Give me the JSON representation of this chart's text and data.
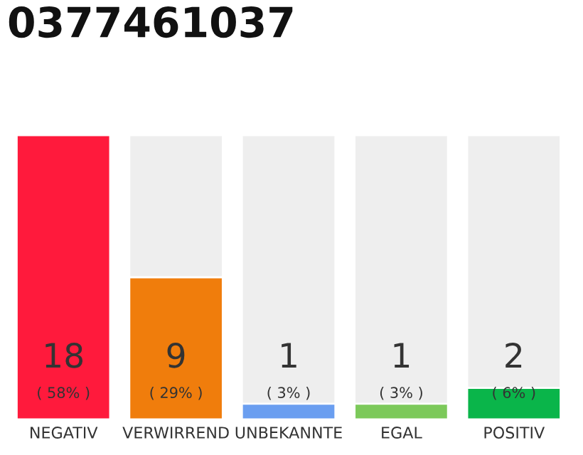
{
  "chart_data": {
    "type": "bar",
    "title": "0377461037",
    "categories": [
      "NEGATIV",
      "VERWIRREND",
      "UNBEKANNTE",
      "EGAL",
      "POSITIV"
    ],
    "values": [
      18,
      9,
      1,
      1,
      2
    ],
    "colors": [
      "#ff1a3c",
      "#f07d0c",
      "#6a9ef0",
      "#7cc95a",
      "#0ab54a"
    ],
    "value_labels": [
      "18\n( 58% )",
      "9\n( 29% )",
      "1\n( 3% )",
      "1\n( 3% )",
      "2\n( 6% )"
    ],
    "ylim": [
      0,
      18
    ],
    "tick_labels": "x",
    "grid": false,
    "legend": false
  }
}
